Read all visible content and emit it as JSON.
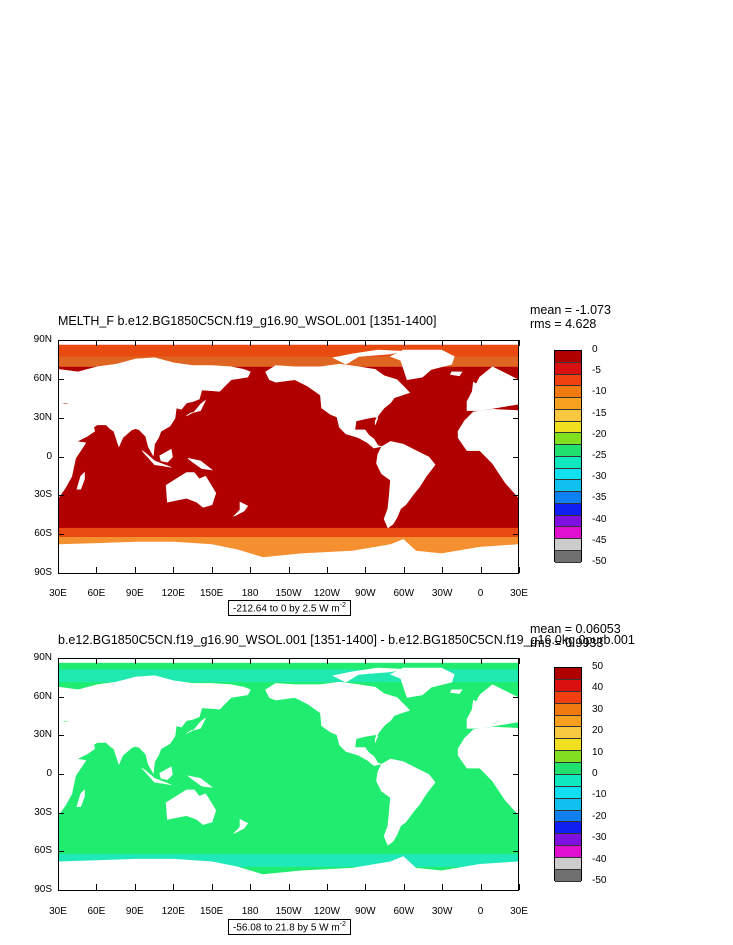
{
  "chart_data": [
    {
      "type": "heatmap",
      "title": "MELTH_F b.e12.BG1850C5CN.f19_g16.90_WSOL.001 [1351-1400]",
      "stats": {
        "mean": "mean = -1.073",
        "rms": "rms = 4.628"
      },
      "yticks": [
        "90N",
        "60N",
        "30N",
        "0",
        "30S",
        "60S",
        "90S"
      ],
      "xticks": [
        "30E",
        "60E",
        "90E",
        "120E",
        "150E",
        "180",
        "150W",
        "120W",
        "90W",
        "60W",
        "30W",
        "0",
        "30E"
      ],
      "ylim": [
        -90,
        90
      ],
      "xlim": [
        30,
        390
      ],
      "range_label": "-212.64 to 0 by 2.5  W m",
      "range_exp": "-2",
      "colorbar": {
        "labels": [
          "0",
          "-5",
          "-10",
          "-15",
          "-20",
          "-25",
          "-30",
          "-35",
          "-40",
          "-45",
          "-50"
        ],
        "colors": [
          "#b00000",
          "#d81010",
          "#f04010",
          "#f07a10",
          "#f8a020",
          "#f8c840",
          "#f0e020",
          "#80e020",
          "#20e070",
          "#10e8c0",
          "#10e0f0",
          "#10c0f0",
          "#1080f0",
          "#1020f0",
          "#8010e0",
          "#e010d0",
          "#cccccc",
          "#707070"
        ]
      },
      "dominant_value": "0 to -2.5 (dark red over ocean)"
    },
    {
      "type": "heatmap",
      "title": "b.e12.BG1850C5CN.f19_g16.90_WSOL.001 [1351-1400] - b.e12.BG1850C5CN.f19_g16.0kg.0purb.001",
      "stats": {
        "mean": "mean = 0.06053",
        "rms": "rms = 0.9933"
      },
      "yticks": [
        "90N",
        "60N",
        "30N",
        "0",
        "30S",
        "60S",
        "90S"
      ],
      "xticks": [
        "30E",
        "60E",
        "90E",
        "120E",
        "150E",
        "180",
        "150W",
        "120W",
        "90W",
        "60W",
        "30W",
        "0",
        "30E"
      ],
      "ylim": [
        -90,
        90
      ],
      "xlim": [
        30,
        390
      ],
      "range_label": "-56.08 to 21.8 by 5  W m",
      "range_exp": "-2",
      "colorbar": {
        "labels": [
          "50",
          "40",
          "30",
          "20",
          "10",
          "0",
          "-10",
          "-20",
          "-30",
          "-40",
          "-50"
        ],
        "colors": [
          "#b00000",
          "#d81010",
          "#f04010",
          "#f07a10",
          "#f8a020",
          "#f8c840",
          "#f0e020",
          "#80e020",
          "#20e070",
          "#10e8c0",
          "#10e0f0",
          "#10c0f0",
          "#1080f0",
          "#1020f0",
          "#8010e0",
          "#e010d0",
          "#cccccc",
          "#707070"
        ]
      },
      "dominant_value": "0 (green over ocean)"
    }
  ],
  "colors": {
    "ocean_panel1": "#b00000",
    "ice_panel1_a": "#e84a10",
    "ice_panel1_b": "#f59030",
    "ocean_panel2": "#20ec70",
    "ice_panel2": "#20e8d8",
    "land": "#ffffff"
  }
}
